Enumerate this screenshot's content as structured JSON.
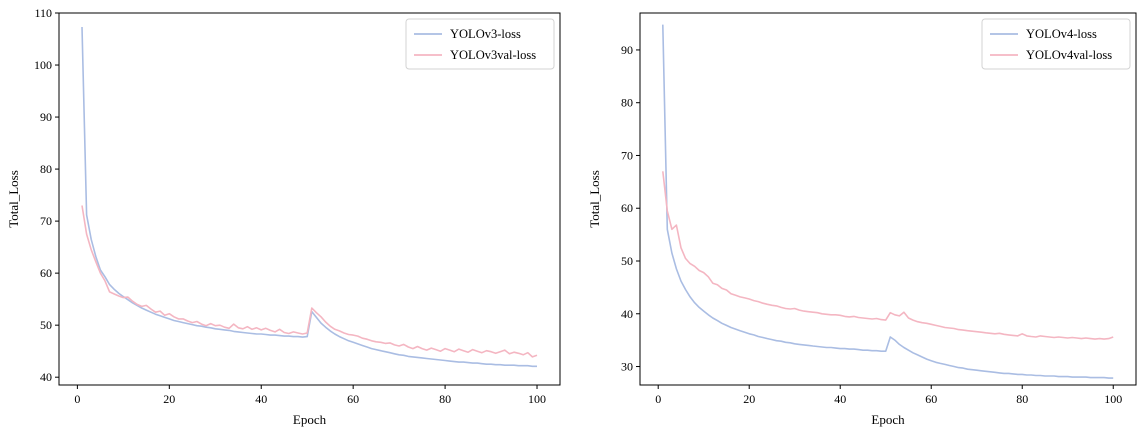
{
  "chart_data": [
    {
      "type": "line",
      "xlabel": "Epoch",
      "ylabel": "Total_Loss",
      "xlim": [
        -4,
        105
      ],
      "ylim": [
        38.5,
        110
      ],
      "xticks": [
        0,
        20,
        40,
        60,
        80,
        100
      ],
      "yticks": [
        40,
        50,
        60,
        70,
        80,
        90,
        100,
        110
      ],
      "grid": false,
      "legend_position": "top-right",
      "series": [
        {
          "name": "YOLOv3-loss",
          "color": "#aabde3",
          "x": [
            1,
            2,
            3,
            4,
            5,
            6,
            7,
            8,
            9,
            10,
            11,
            12,
            13,
            14,
            15,
            16,
            17,
            18,
            19,
            20,
            21,
            22,
            23,
            24,
            25,
            26,
            27,
            28,
            29,
            30,
            31,
            32,
            33,
            34,
            35,
            36,
            37,
            38,
            39,
            40,
            41,
            42,
            43,
            44,
            45,
            46,
            47,
            48,
            49,
            50,
            51,
            52,
            53,
            54,
            55,
            56,
            57,
            58,
            59,
            60,
            61,
            62,
            63,
            64,
            65,
            66,
            67,
            68,
            69,
            70,
            71,
            72,
            73,
            74,
            75,
            76,
            77,
            78,
            79,
            80,
            81,
            82,
            83,
            84,
            85,
            86,
            87,
            88,
            89,
            90,
            91,
            92,
            93,
            94,
            95,
            96,
            97,
            98,
            99,
            100
          ],
          "values": [
            107.3,
            71.2,
            66.5,
            63.2,
            60.6,
            59.3,
            57.8,
            56.9,
            56.1,
            55.5,
            54.9,
            54.3,
            53.8,
            53.3,
            52.9,
            52.5,
            52.1,
            51.8,
            51.5,
            51.2,
            50.9,
            50.7,
            50.5,
            50.3,
            50.1,
            49.9,
            49.8,
            49.6,
            49.5,
            49.3,
            49.2,
            49.1,
            49.0,
            48.8,
            48.7,
            48.6,
            48.5,
            48.4,
            48.3,
            48.3,
            48.2,
            48.1,
            48.1,
            48.0,
            47.9,
            47.9,
            47.8,
            47.8,
            47.7,
            47.8,
            52.6,
            51.5,
            50.4,
            49.6,
            48.9,
            48.3,
            47.8,
            47.4,
            47.0,
            46.7,
            46.4,
            46.1,
            45.8,
            45.5,
            45.3,
            45.1,
            44.9,
            44.7,
            44.5,
            44.3,
            44.2,
            44.0,
            43.9,
            43.8,
            43.7,
            43.6,
            43.5,
            43.4,
            43.3,
            43.2,
            43.1,
            43.0,
            42.9,
            42.9,
            42.8,
            42.7,
            42.7,
            42.6,
            42.5,
            42.5,
            42.4,
            42.4,
            42.3,
            42.3,
            42.3,
            42.2,
            42.2,
            42.2,
            42.1,
            42.1
          ]
        },
        {
          "name": "YOLOv3val-loss",
          "color": "#f4b6c2",
          "x": [
            1,
            2,
            3,
            4,
            5,
            6,
            7,
            8,
            9,
            10,
            11,
            12,
            13,
            14,
            15,
            16,
            17,
            18,
            19,
            20,
            21,
            22,
            23,
            24,
            25,
            26,
            27,
            28,
            29,
            30,
            31,
            32,
            33,
            34,
            35,
            36,
            37,
            38,
            39,
            40,
            41,
            42,
            43,
            44,
            45,
            46,
            47,
            48,
            49,
            50,
            51,
            52,
            53,
            54,
            55,
            56,
            57,
            58,
            59,
            60,
            61,
            62,
            63,
            64,
            65,
            66,
            67,
            68,
            69,
            70,
            71,
            72,
            73,
            74,
            75,
            76,
            77,
            78,
            79,
            80,
            81,
            82,
            83,
            84,
            85,
            86,
            87,
            88,
            89,
            90,
            91,
            92,
            93,
            94,
            95,
            96,
            97,
            98,
            99,
            100
          ],
          "values": [
            73.0,
            67.5,
            64.5,
            62.2,
            60.0,
            58.5,
            56.4,
            56.0,
            55.6,
            55.3,
            55.4,
            54.6,
            54.0,
            53.6,
            53.8,
            53.1,
            52.5,
            52.7,
            51.9,
            52.2,
            51.6,
            51.2,
            51.2,
            50.8,
            50.5,
            50.7,
            50.2,
            49.9,
            50.3,
            49.9,
            50.0,
            49.6,
            49.4,
            50.2,
            49.5,
            49.3,
            49.7,
            49.2,
            49.5,
            49.1,
            49.4,
            49.0,
            48.7,
            49.2,
            48.6,
            48.4,
            48.7,
            48.5,
            48.3,
            48.5,
            53.3,
            52.4,
            51.6,
            50.6,
            49.8,
            49.2,
            48.9,
            48.5,
            48.2,
            48.1,
            47.9,
            47.5,
            47.3,
            47.0,
            46.8,
            46.7,
            46.5,
            46.6,
            46.2,
            46.0,
            46.3,
            45.8,
            45.5,
            45.9,
            45.5,
            45.2,
            45.6,
            45.3,
            45.0,
            45.5,
            45.2,
            44.9,
            45.4,
            45.1,
            44.8,
            45.3,
            45.0,
            44.7,
            45.1,
            44.9,
            44.6,
            44.9,
            45.2,
            44.5,
            44.8,
            44.6,
            44.3,
            44.7,
            43.9,
            44.2
          ]
        }
      ]
    },
    {
      "type": "line",
      "xlabel": "Epoch",
      "ylabel": "Total_Loss",
      "xlim": [
        -4,
        105
      ],
      "ylim": [
        26.5,
        97
      ],
      "xticks": [
        0,
        20,
        40,
        60,
        80,
        100
      ],
      "yticks": [
        30,
        40,
        50,
        60,
        70,
        80,
        90
      ],
      "grid": false,
      "legend_position": "top-right",
      "series": [
        {
          "name": "YOLOv4-loss",
          "color": "#aabde3",
          "x": [
            1,
            2,
            3,
            4,
            5,
            6,
            7,
            8,
            9,
            10,
            11,
            12,
            13,
            14,
            15,
            16,
            17,
            18,
            19,
            20,
            21,
            22,
            23,
            24,
            25,
            26,
            27,
            28,
            29,
            30,
            31,
            32,
            33,
            34,
            35,
            36,
            37,
            38,
            39,
            40,
            41,
            42,
            43,
            44,
            45,
            46,
            47,
            48,
            49,
            50,
            51,
            52,
            53,
            54,
            55,
            56,
            57,
            58,
            59,
            60,
            61,
            62,
            63,
            64,
            65,
            66,
            67,
            68,
            69,
            70,
            71,
            72,
            73,
            74,
            75,
            76,
            77,
            78,
            79,
            80,
            81,
            82,
            83,
            84,
            85,
            86,
            87,
            88,
            89,
            90,
            91,
            92,
            93,
            94,
            95,
            96,
            97,
            98,
            99,
            100
          ],
          "values": [
            94.8,
            56.0,
            51.5,
            48.5,
            46.2,
            44.6,
            43.2,
            42.1,
            41.2,
            40.5,
            39.8,
            39.2,
            38.7,
            38.2,
            37.8,
            37.4,
            37.1,
            36.8,
            36.5,
            36.2,
            36.0,
            35.7,
            35.5,
            35.3,
            35.1,
            34.9,
            34.8,
            34.6,
            34.5,
            34.3,
            34.2,
            34.1,
            34.0,
            33.9,
            33.8,
            33.7,
            33.6,
            33.6,
            33.5,
            33.4,
            33.4,
            33.3,
            33.3,
            33.2,
            33.1,
            33.1,
            33.0,
            33.0,
            32.9,
            32.9,
            35.6,
            35.0,
            34.2,
            33.6,
            33.1,
            32.6,
            32.2,
            31.8,
            31.4,
            31.1,
            30.8,
            30.6,
            30.4,
            30.2,
            30.0,
            29.8,
            29.7,
            29.5,
            29.4,
            29.3,
            29.2,
            29.1,
            29.0,
            28.9,
            28.8,
            28.7,
            28.7,
            28.6,
            28.5,
            28.5,
            28.4,
            28.4,
            28.3,
            28.3,
            28.2,
            28.2,
            28.2,
            28.1,
            28.1,
            28.1,
            28.0,
            28.0,
            28.0,
            28.0,
            27.9,
            27.9,
            27.9,
            27.9,
            27.8,
            27.8
          ]
        },
        {
          "name": "YOLOv4val-loss",
          "color": "#f4b6c2",
          "x": [
            1,
            2,
            3,
            4,
            5,
            6,
            7,
            8,
            9,
            10,
            11,
            12,
            13,
            14,
            15,
            16,
            17,
            18,
            19,
            20,
            21,
            22,
            23,
            24,
            25,
            26,
            27,
            28,
            29,
            30,
            31,
            32,
            33,
            34,
            35,
            36,
            37,
            38,
            39,
            40,
            41,
            42,
            43,
            44,
            45,
            46,
            47,
            48,
            49,
            50,
            51,
            52,
            53,
            54,
            55,
            56,
            57,
            58,
            59,
            60,
            61,
            62,
            63,
            64,
            65,
            66,
            67,
            68,
            69,
            70,
            71,
            72,
            73,
            74,
            75,
            76,
            77,
            78,
            79,
            80,
            81,
            82,
            83,
            84,
            85,
            86,
            87,
            88,
            89,
            90,
            91,
            92,
            93,
            94,
            95,
            96,
            97,
            98,
            99,
            100
          ],
          "values": [
            67.0,
            59.5,
            56.0,
            56.8,
            52.5,
            50.5,
            49.5,
            49.0,
            48.2,
            47.8,
            47.0,
            45.8,
            45.5,
            44.8,
            44.5,
            43.8,
            43.5,
            43.2,
            43.0,
            42.8,
            42.5,
            42.3,
            42.0,
            41.8,
            41.6,
            41.5,
            41.2,
            41.0,
            40.9,
            41.0,
            40.7,
            40.5,
            40.4,
            40.3,
            40.2,
            40.0,
            39.9,
            39.8,
            39.8,
            39.7,
            39.5,
            39.4,
            39.5,
            39.3,
            39.2,
            39.1,
            39.0,
            39.1,
            38.9,
            38.8,
            40.2,
            39.8,
            39.6,
            40.3,
            39.2,
            38.8,
            38.5,
            38.3,
            38.2,
            38.0,
            37.8,
            37.6,
            37.4,
            37.3,
            37.2,
            37.0,
            36.9,
            36.8,
            36.7,
            36.6,
            36.5,
            36.4,
            36.3,
            36.2,
            36.3,
            36.1,
            36.0,
            35.9,
            35.8,
            36.2,
            35.8,
            35.7,
            35.6,
            35.8,
            35.7,
            35.6,
            35.5,
            35.6,
            35.5,
            35.4,
            35.5,
            35.4,
            35.3,
            35.4,
            35.3,
            35.2,
            35.3,
            35.2,
            35.3,
            35.6
          ]
        }
      ]
    }
  ]
}
